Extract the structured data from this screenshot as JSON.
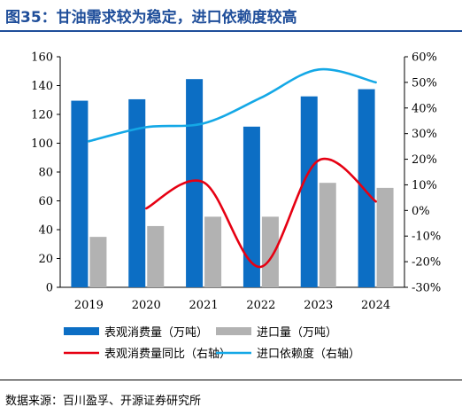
{
  "header": {
    "title": "图35：甘油需求较为稳定，进口依赖度较高"
  },
  "footer": {
    "source": "数据来源：百川盈孚、开源证券研究所"
  },
  "colors": {
    "consumption": "#0c6ec4",
    "imports": "#b2b2b2",
    "consumption_yoy": "#e60012",
    "import_dependence": "#14a8e6",
    "title": "#1f4e9a"
  },
  "chart_data": {
    "type": "bar",
    "title": "",
    "xlabel": "",
    "ylabel": "",
    "categories": [
      "2019",
      "2020",
      "2021",
      "2022",
      "2023",
      "2024"
    ],
    "ylim": [
      0,
      160
    ],
    "yticks": [
      0,
      20,
      40,
      60,
      80,
      100,
      120,
      140,
      160
    ],
    "y2lim": [
      -30,
      60
    ],
    "y2ticks": [
      "-30%",
      "-20%",
      "-10%",
      "0%",
      "10%",
      "20%",
      "30%",
      "40%",
      "50%",
      "60%"
    ],
    "y2ticks_values": [
      -30,
      -20,
      -10,
      0,
      10,
      20,
      30,
      40,
      50,
      60
    ],
    "grid": false,
    "legend_position": "bottom",
    "series": [
      {
        "name": "表观消费量（万吨）",
        "kind": "bar",
        "axis": "left",
        "values": [
          129.5,
          130.5,
          144.5,
          111.5,
          132.5,
          137.5
        ]
      },
      {
        "name": "进口量（万吨）",
        "kind": "bar",
        "axis": "left",
        "values": [
          35,
          42.5,
          49,
          49,
          72.5,
          69
        ]
      },
      {
        "name": "表观消费量同比（右轴）",
        "kind": "line",
        "axis": "right",
        "smooth": true,
        "values": [
          null,
          0.8,
          11,
          -22,
          19.5,
          3.5
        ]
      },
      {
        "name": "进口依赖度（右轴）",
        "kind": "line",
        "axis": "right",
        "smooth": true,
        "values": [
          27,
          32.5,
          34,
          44,
          55,
          50
        ]
      }
    ]
  }
}
